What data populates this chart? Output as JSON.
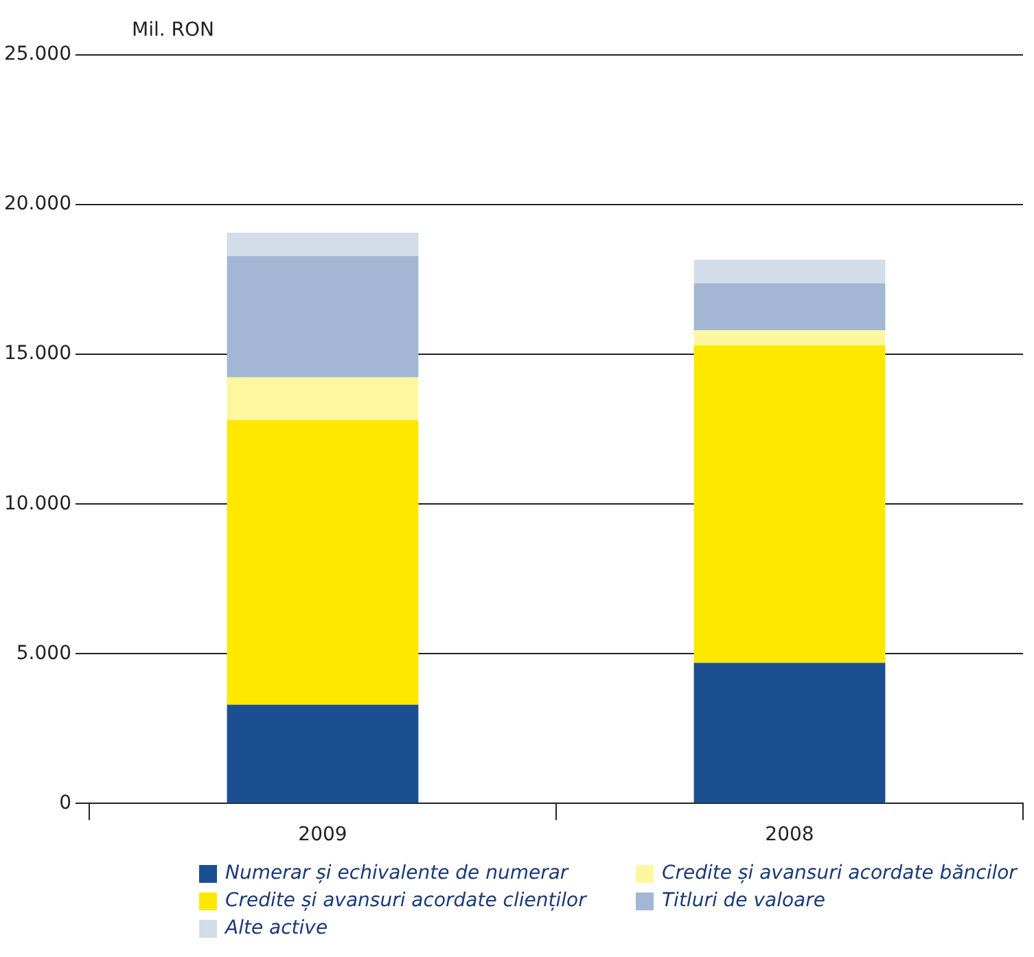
{
  "chart_data": {
    "type": "bar",
    "ylabel": "Mil. RON",
    "categories": [
      "2009",
      "2008"
    ],
    "stacked": true,
    "series": [
      {
        "name": "Numerar și echivalente de numerar",
        "color": "#1b4f91",
        "values": [
          3300,
          4700
        ]
      },
      {
        "name": "Credite și avansuri acordate clienților",
        "color": "#ffe800",
        "values": [
          9500,
          10600
        ]
      },
      {
        "name": "Credite și avansuri acordate băncilor",
        "color": "#fff7a0",
        "values": [
          1430,
          500
        ]
      },
      {
        "name": "Titluri de valoare",
        "color": "#a3b7d4",
        "values": [
          4050,
          1570
        ]
      },
      {
        "name": "Alte active",
        "color": "#d3dde9",
        "values": [
          780,
          790
        ]
      }
    ],
    "ylim": [
      0,
      25000
    ],
    "yticks": [
      {
        "value": 0,
        "label": "0"
      },
      {
        "value": 5000,
        "label": "5.000"
      },
      {
        "value": 10000,
        "label": "10.000"
      },
      {
        "value": 15000,
        "label": "15.000"
      },
      {
        "value": 20000,
        "label": "20.000"
      },
      {
        "value": 25000,
        "label": "25.000"
      }
    ],
    "grid": "y",
    "legend": "bottom"
  }
}
